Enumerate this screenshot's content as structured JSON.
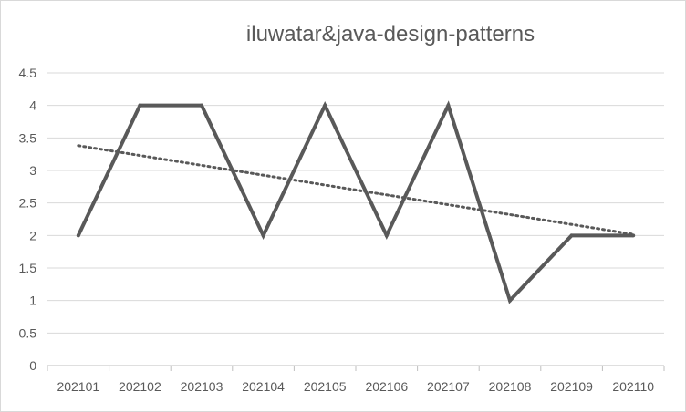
{
  "chart_data": {
    "type": "line",
    "title": "iluwatar&java-design-patterns",
    "xlabel": "",
    "ylabel": "",
    "categories": [
      "202101",
      "202102",
      "202103",
      "202104",
      "202105",
      "202106",
      "202107",
      "202108",
      "202109",
      "202110"
    ],
    "series": [
      {
        "values": [
          2,
          4,
          4,
          2,
          4,
          2,
          4,
          1,
          2,
          2
        ],
        "color": "#595959"
      }
    ],
    "trendline": {
      "type": "linear",
      "style": "dotted",
      "color": "#595959"
    },
    "ylim": [
      0,
      4.5
    ],
    "yticks": [
      "0",
      "0.5",
      "1",
      "1.5",
      "2",
      "2.5",
      "3",
      "3.5",
      "4",
      "4.5"
    ],
    "grid": true,
    "legend": "none"
  }
}
